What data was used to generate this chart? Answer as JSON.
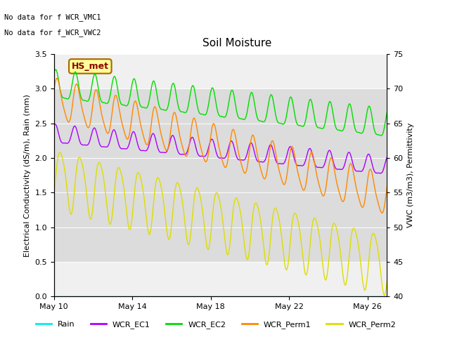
{
  "title": "Soil Moisture",
  "annotations": [
    "No data for f WCR_VMC1",
    "No data for f̲WCR̲VWC2"
  ],
  "station_label": "HS_met",
  "ylabel_left": "Electrical Conductivity (dS/m), Rain (mm)",
  "ylabel_right": "VWC (m3/m3), Permittivity",
  "ylim_left": [
    0.0,
    3.5
  ],
  "ylim_right": [
    40,
    75
  ],
  "xtick_labels": [
    "May 10",
    "May 14",
    "May 18",
    "May 22",
    "May 26"
  ],
  "yticks_left": [
    0.0,
    0.5,
    1.0,
    1.5,
    2.0,
    2.5,
    3.0,
    3.5
  ],
  "yticks_right": [
    40,
    45,
    50,
    55,
    60,
    65,
    70,
    75
  ],
  "gray_band": [
    0.5,
    3.0
  ],
  "colors": {
    "Rain": "#00eeee",
    "WCR_EC1": "#aa00ff",
    "WCR_EC2": "#00dd00",
    "WCR_Perm1": "#ff8800",
    "WCR_Perm2": "#dddd00"
  },
  "background_color": "#ffffff",
  "plot_bg_color": "#f0f0f0",
  "gray_band_color": "#dcdcdc"
}
